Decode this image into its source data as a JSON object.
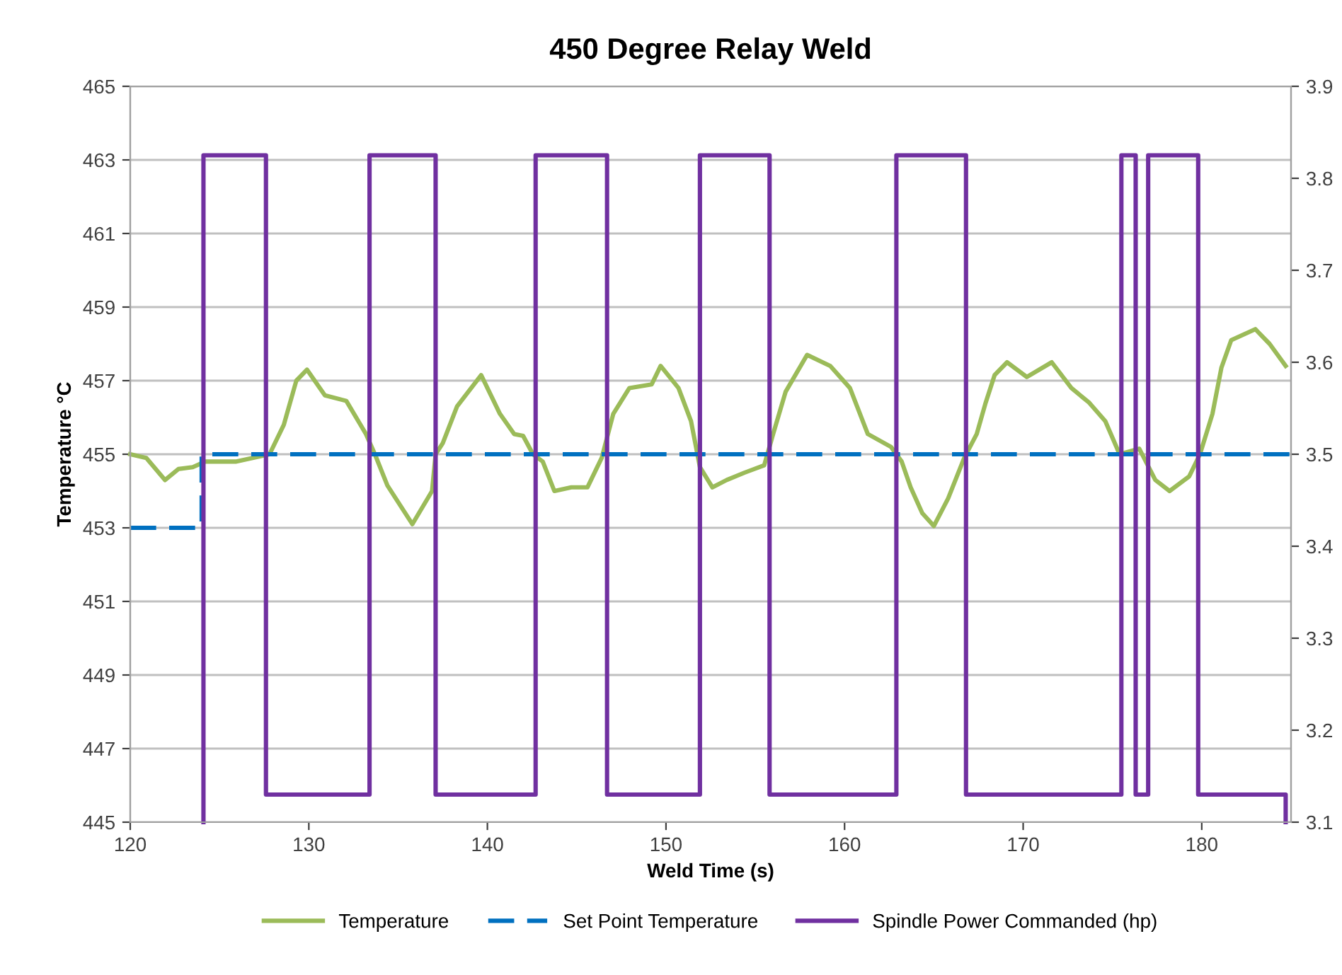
{
  "chart_data": {
    "type": "line",
    "title": "450 Degree Relay Weld",
    "xlabel": "Weld Time (s)",
    "ylabel": "Temperature °C",
    "xlim": [
      120,
      185
    ],
    "xticks": [
      120,
      130,
      140,
      150,
      160,
      170,
      180
    ],
    "ylim": [
      445,
      465
    ],
    "yticks": [
      445,
      447,
      449,
      451,
      453,
      455,
      457,
      459,
      461,
      463,
      465
    ],
    "y2lim": [
      3.1,
      3.9
    ],
    "y2ticks": [
      3.1,
      3.2,
      3.3,
      3.4,
      3.5,
      3.6,
      3.7,
      3.8,
      3.9
    ],
    "grid": "y",
    "legend": "bottom",
    "marker": "none",
    "series": [
      {
        "name": "Temperature",
        "color": "#9bbb59",
        "line_style": "solid",
        "x": [
          120.0,
          120.9,
          121.95,
          122.7,
          123.5,
          124.2,
          125.9,
          127.8,
          128.6,
          129.3,
          129.9,
          130.9,
          132.1,
          133.2,
          133.7,
          134.4,
          135.8,
          136.9,
          137.1,
          137.5,
          138.3,
          139.65,
          140.7,
          141.5,
          142.0,
          142.55,
          143.1,
          143.75,
          144.7,
          145.6,
          146.4,
          147.05,
          147.95,
          149.2,
          149.7,
          150.7,
          151.4,
          151.9,
          152.6,
          153.4,
          154.4,
          155.5,
          156.0,
          156.7,
          157.9,
          159.2,
          160.3,
          161.3,
          162.6,
          163.2,
          163.7,
          164.35,
          165.0,
          165.8,
          166.7,
          167.4,
          167.9,
          168.4,
          169.1,
          170.2,
          171.6,
          172.7,
          173.7,
          174.6,
          175.4,
          176.5,
          177.4,
          178.2,
          179.3,
          179.9,
          180.6,
          181.1,
          181.65,
          183.0,
          183.8,
          184.7
        ],
        "values": [
          455.0,
          454.9,
          454.3,
          454.6,
          454.65,
          454.8,
          454.8,
          455.0,
          455.8,
          457.0,
          457.3,
          456.6,
          456.45,
          455.55,
          455.0,
          454.15,
          453.1,
          454.0,
          455.0,
          455.3,
          456.3,
          457.15,
          456.1,
          455.55,
          455.5,
          455.0,
          454.8,
          454.0,
          454.1,
          454.1,
          454.9,
          456.1,
          456.8,
          456.9,
          457.4,
          456.8,
          455.9,
          454.65,
          454.1,
          454.3,
          454.5,
          454.7,
          455.55,
          456.7,
          457.7,
          457.4,
          456.8,
          455.55,
          455.2,
          454.8,
          454.1,
          453.4,
          453.05,
          453.8,
          454.9,
          455.55,
          456.4,
          457.15,
          457.5,
          457.1,
          457.5,
          456.8,
          456.4,
          455.9,
          455.0,
          455.15,
          454.3,
          454.0,
          454.4,
          455.0,
          456.1,
          457.35,
          458.1,
          458.4,
          458.0,
          457.4
        ]
      },
      {
        "name": "Set Point Temperature",
        "color": "#0070c0",
        "line_style": "dashed",
        "x": [
          120,
          124.0,
          124.0,
          185
        ],
        "values": [
          453,
          453,
          455,
          455
        ]
      },
      {
        "name": "Spindle Power Commanded (hp)",
        "color": "#7030a0",
        "line_style": "solid",
        "axis": "y2",
        "type": "step",
        "x": [
          124.1,
          124.1,
          127.6,
          133.4,
          137.1,
          142.7,
          146.7,
          151.9,
          155.8,
          162.9,
          166.8,
          175.5,
          176.3,
          177.0,
          179.8,
          184.7,
          184.7
        ],
        "values": [
          3.1,
          3.825,
          3.13,
          3.825,
          3.13,
          3.825,
          3.13,
          3.825,
          3.13,
          3.825,
          3.13,
          3.825,
          3.13,
          3.825,
          3.13,
          3.13,
          3.1
        ]
      }
    ]
  }
}
